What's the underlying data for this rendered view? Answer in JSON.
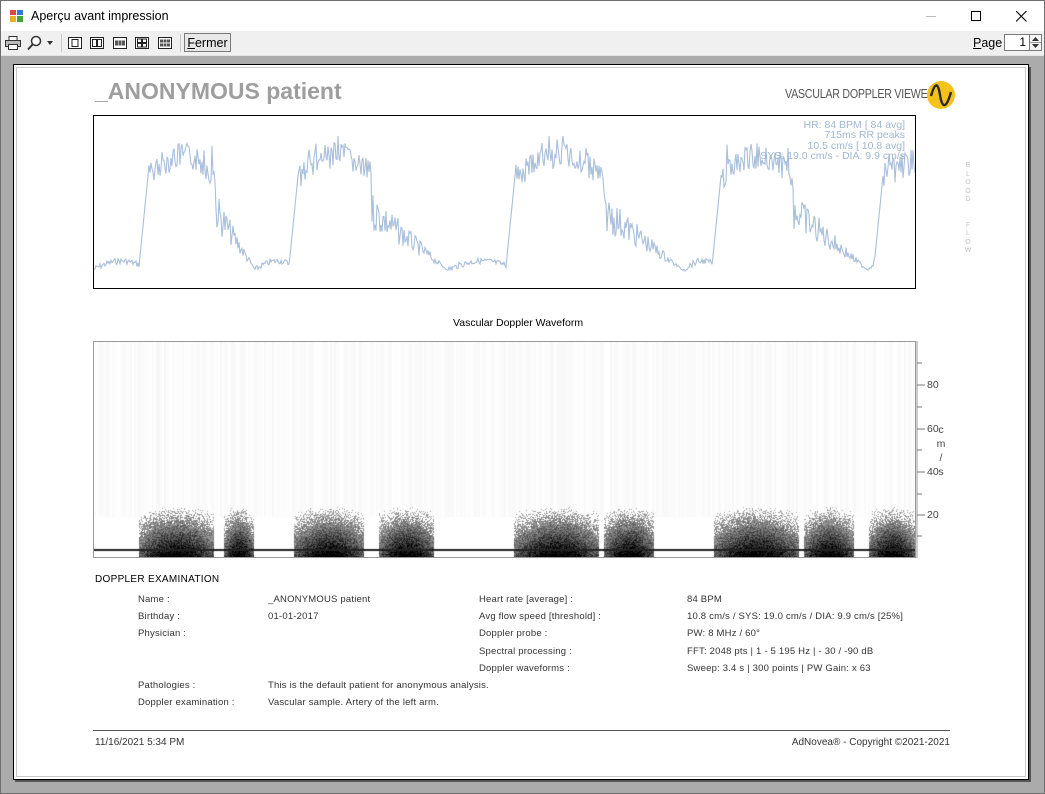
{
  "window": {
    "title": "Aperçu avant impression",
    "controls": {
      "minimize": "minimize",
      "maximize": "maximize",
      "close": "close"
    }
  },
  "toolbar": {
    "print_icon": "printer-icon",
    "zoom_icon": "magnifier-icon",
    "layouts": [
      "one-page",
      "two-pages",
      "three-pages",
      "four-pages",
      "six-pages"
    ],
    "close_label": "Fermer",
    "close_mnemonic": "F",
    "page_label": "Page",
    "page_mnemonic": "P",
    "page_value": "1"
  },
  "report": {
    "patient_title": "_ANONYMOUS patient",
    "brand": "VASCULAR DOPPLER VIEWER",
    "flow_stats": [
      "HR: 84 BPM [ 84 avg]",
      "715ms RR peaks",
      "10.5 cm/s [ 10.8 avg]",
      "SYS: 19.0 cm/s - DIA:  9.9 cm/s"
    ],
    "vertical_label": "BLOOD FLOW",
    "waveform_title": "Vascular Doppler Waveform",
    "axis_ticks": [
      "80",
      "60",
      "40",
      "20"
    ],
    "axis_unit": [
      "c",
      "m",
      "/",
      "s"
    ],
    "section_title": "DOPPLER EXAMINATION",
    "left_fields": [
      {
        "label": "Name :",
        "value": "_ANONYMOUS patient"
      },
      {
        "label": "Birthday :",
        "value": "01-01-2017"
      },
      {
        "label": "Physician :",
        "value": ""
      }
    ],
    "right_fields": [
      {
        "label": "Heart rate [average] :",
        "value": "84 BPM"
      },
      {
        "label": "Avg flow speed [threshold] :",
        "value": "10.8 cm/s / SYS: 19.0 cm/s / DIA: 9.9 cm/s [25%]"
      },
      {
        "label": "Doppler probe :",
        "value": "PW: 8 MHz / 60°"
      },
      {
        "label": "Spectral processing :",
        "value": "FFT: 2048 pts | 1 - 5 195 Hz | - 30 / -90 dB"
      },
      {
        "label": "Doppler waveforms :",
        "value": "Sweep: 3.4 s | 300 points | PW Gain: x 63"
      }
    ],
    "bottom_fields": [
      {
        "label": "Pathologies :",
        "value": "This is the default patient for anonymous analysis."
      },
      {
        "label": "Doppler examination :",
        "value": "Vascular sample. Artery of the left arm."
      }
    ],
    "footer_date": "11/16/2021 5:34 PM",
    "footer_copyright": "AdNovea® - Copyright ©2021-2021"
  },
  "colors": {
    "trace": "#a9bfdb",
    "stats": "#9fb7d2",
    "title_gray": "#9e9e9e",
    "preview_bg": "#ababab",
    "logo_yellow": "#f4c21a"
  }
}
